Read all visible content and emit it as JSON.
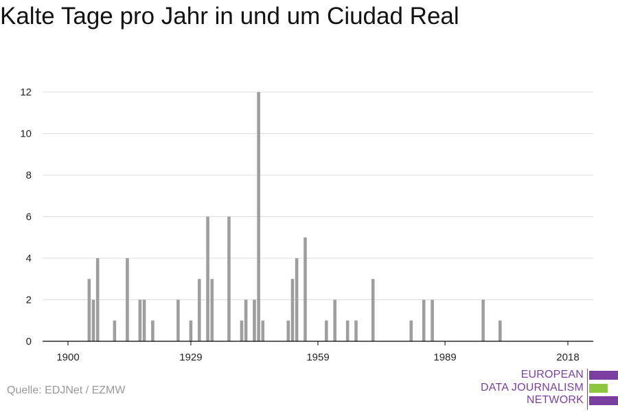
{
  "title": "Kalte Tage pro Jahr in und um Ciudad Real",
  "source": "Quelle: EDJNet / EZMW",
  "logo": {
    "lines": [
      "EUROPEAN",
      "DATA JOURNALISM",
      "NETWORK"
    ],
    "colors": {
      "purple": "#7b3fa0",
      "green": "#8dc63f"
    }
  },
  "colors": {
    "bar": "#9e9e9e",
    "grid": "#dddddd",
    "axis": "#000000",
    "text": "#222222"
  },
  "chart_data": {
    "type": "bar",
    "title": "Kalte Tage pro Jahr in und um Ciudad Real",
    "xlabel": "",
    "ylabel": "",
    "x_ticks": [
      1900,
      1929,
      1959,
      1989,
      2018
    ],
    "y_ticks": [
      0,
      2,
      4,
      6,
      8,
      10,
      12
    ],
    "xlim": [
      1894,
      2024
    ],
    "ylim": [
      0,
      12
    ],
    "grid": true,
    "x": [
      1905,
      1906,
      1907,
      1911,
      1914,
      1917,
      1918,
      1920,
      1926,
      1929,
      1931,
      1933,
      1934,
      1938,
      1941,
      1942,
      1944,
      1945,
      1946,
      1952,
      1953,
      1954,
      1956,
      1961,
      1963,
      1966,
      1968,
      1972,
      1981,
      1984,
      1986,
      1998,
      2002
    ],
    "values": [
      3,
      2,
      4,
      1,
      4,
      2,
      2,
      1,
      2,
      1,
      3,
      6,
      3,
      6,
      1,
      2,
      2,
      12,
      1,
      1,
      3,
      4,
      5,
      1,
      2,
      1,
      1,
      3,
      1,
      2,
      2,
      2,
      1
    ]
  }
}
